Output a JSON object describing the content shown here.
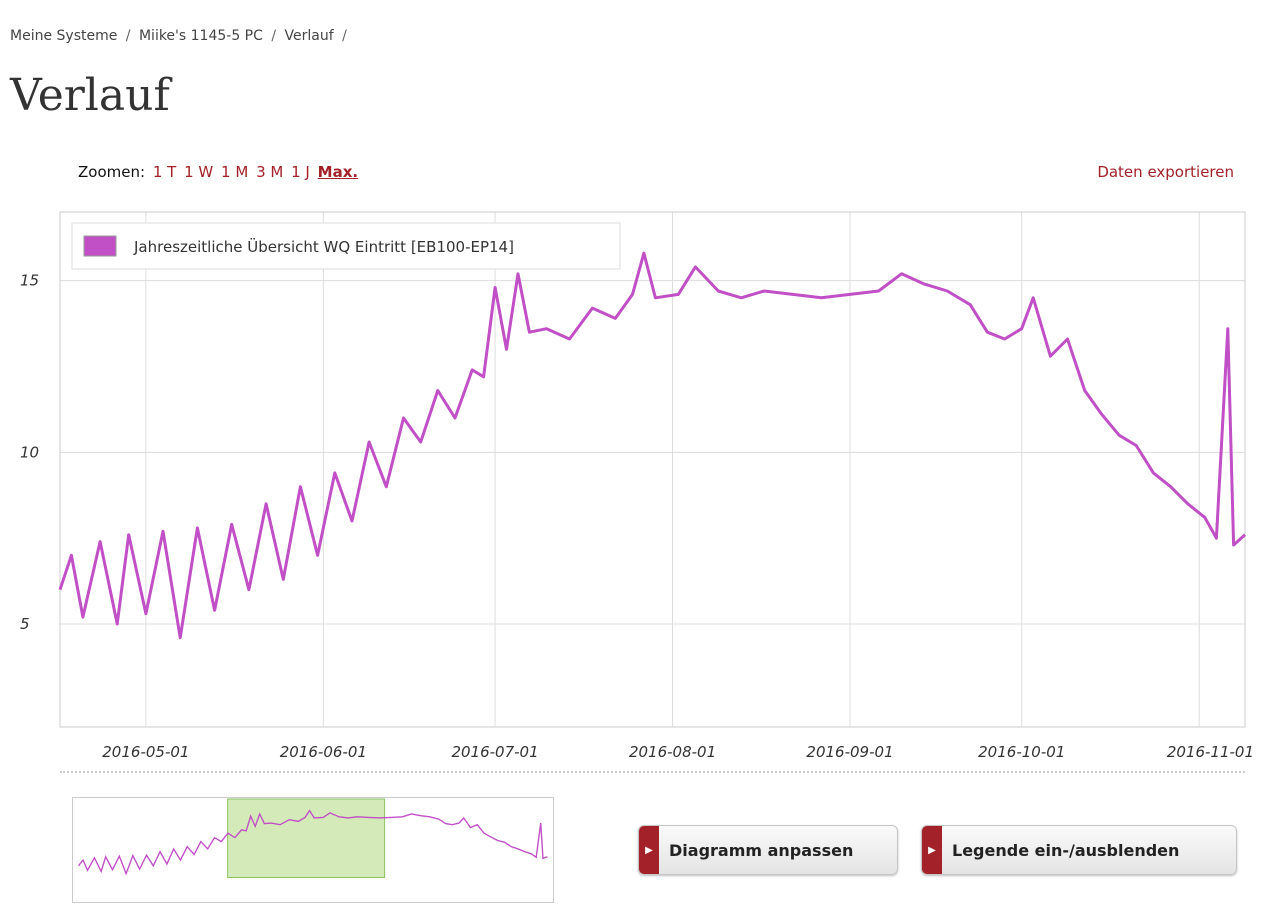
{
  "breadcrumb": {
    "items": [
      "Meine Systeme",
      "Miike's 1145-5 PC",
      "Verlauf"
    ],
    "separator": "/"
  },
  "page_title": "Verlauf",
  "zoom": {
    "label": "Zoomen:",
    "options": [
      "1 T",
      "1 W",
      "1 M",
      "3 M",
      "1 J",
      "Max."
    ],
    "active": "Max."
  },
  "export_label": "Daten exportieren",
  "buttons": {
    "adjust_chart": "Diagramm anpassen",
    "toggle_legend": "Legende ein-/ausblenden"
  },
  "colors": {
    "series": "#c14fc6",
    "accent": "#a3222a",
    "grid": "#dddddd",
    "navigator_selection": "#d4eab9"
  },
  "chart_data": {
    "type": "line",
    "legend": "Jahreszeitliche Übersicht WQ Eintritt [EB100-EP14]",
    "legend_position": "top-left",
    "grid": true,
    "xlim": [
      "2016-04-16",
      "2016-11-09"
    ],
    "ylim": [
      2,
      17
    ],
    "y_ticks": [
      5,
      10,
      15
    ],
    "x_ticks": [
      "2016-05-01",
      "2016-06-01",
      "2016-07-01",
      "2016-08-01",
      "2016-09-01",
      "2016-10-01",
      "2016-11-01"
    ],
    "series": [
      {
        "name": "Jahreszeitliche Übersicht WQ Eintritt [EB100-EP14]",
        "points": [
          [
            "2016-04-16",
            6.0
          ],
          [
            "2016-04-18",
            7.0
          ],
          [
            "2016-04-20",
            5.2
          ],
          [
            "2016-04-23",
            7.4
          ],
          [
            "2016-04-26",
            5.0
          ],
          [
            "2016-04-28",
            7.6
          ],
          [
            "2016-05-01",
            5.3
          ],
          [
            "2016-05-04",
            7.7
          ],
          [
            "2016-05-07",
            4.6
          ],
          [
            "2016-05-10",
            7.8
          ],
          [
            "2016-05-13",
            5.4
          ],
          [
            "2016-05-16",
            7.9
          ],
          [
            "2016-05-19",
            6.0
          ],
          [
            "2016-05-22",
            8.5
          ],
          [
            "2016-05-25",
            6.3
          ],
          [
            "2016-05-28",
            9.0
          ],
          [
            "2016-05-31",
            7.0
          ],
          [
            "2016-06-03",
            9.4
          ],
          [
            "2016-06-06",
            8.0
          ],
          [
            "2016-06-09",
            10.3
          ],
          [
            "2016-06-12",
            9.0
          ],
          [
            "2016-06-15",
            11.0
          ],
          [
            "2016-06-18",
            10.3
          ],
          [
            "2016-06-21",
            11.8
          ],
          [
            "2016-06-24",
            11.0
          ],
          [
            "2016-06-27",
            12.4
          ],
          [
            "2016-06-29",
            12.2
          ],
          [
            "2016-07-01",
            14.8
          ],
          [
            "2016-07-03",
            13.0
          ],
          [
            "2016-07-05",
            15.2
          ],
          [
            "2016-07-07",
            13.5
          ],
          [
            "2016-07-10",
            13.6
          ],
          [
            "2016-07-14",
            13.3
          ],
          [
            "2016-07-18",
            14.2
          ],
          [
            "2016-07-22",
            13.9
          ],
          [
            "2016-07-25",
            14.6
          ],
          [
            "2016-07-27",
            15.8
          ],
          [
            "2016-07-29",
            14.5
          ],
          [
            "2016-08-02",
            14.6
          ],
          [
            "2016-08-05",
            15.4
          ],
          [
            "2016-08-09",
            14.7
          ],
          [
            "2016-08-13",
            14.5
          ],
          [
            "2016-08-17",
            14.7
          ],
          [
            "2016-08-22",
            14.6
          ],
          [
            "2016-08-27",
            14.5
          ],
          [
            "2016-09-01",
            14.6
          ],
          [
            "2016-09-06",
            14.7
          ],
          [
            "2016-09-10",
            15.2
          ],
          [
            "2016-09-14",
            14.9
          ],
          [
            "2016-09-18",
            14.7
          ],
          [
            "2016-09-22",
            14.3
          ],
          [
            "2016-09-25",
            13.5
          ],
          [
            "2016-09-28",
            13.3
          ],
          [
            "2016-10-01",
            13.6
          ],
          [
            "2016-10-03",
            14.5
          ],
          [
            "2016-10-06",
            12.8
          ],
          [
            "2016-10-09",
            13.3
          ],
          [
            "2016-10-12",
            11.8
          ],
          [
            "2016-10-15",
            11.1
          ],
          [
            "2016-10-18",
            10.5
          ],
          [
            "2016-10-21",
            10.2
          ],
          [
            "2016-10-24",
            9.4
          ],
          [
            "2016-10-27",
            9.0
          ],
          [
            "2016-10-30",
            8.5
          ],
          [
            "2016-11-02",
            8.1
          ],
          [
            "2016-11-04",
            7.5
          ],
          [
            "2016-11-06",
            13.6
          ],
          [
            "2016-11-07",
            7.3
          ],
          [
            "2016-11-09",
            7.6
          ]
        ]
      }
    ]
  }
}
